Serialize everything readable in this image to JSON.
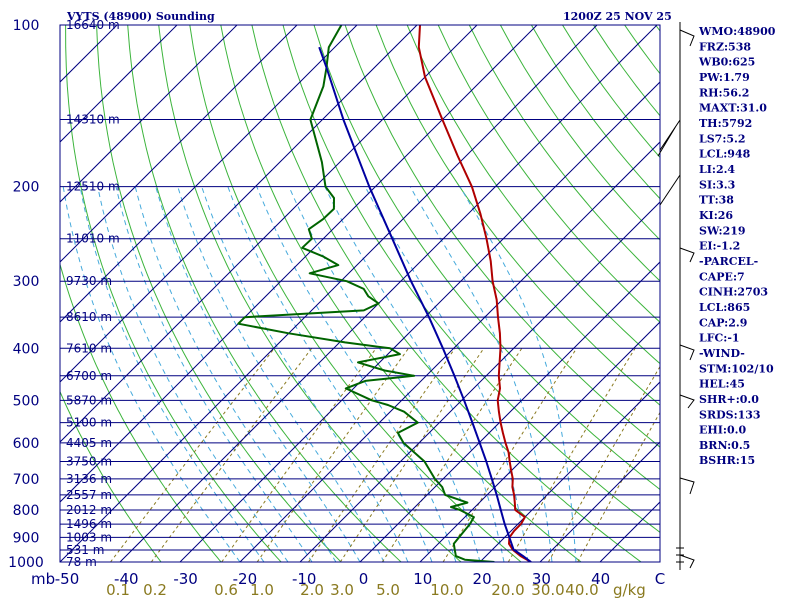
{
  "header": {
    "station_title": "VYTS (48900) Sounding",
    "time_label": "1200Z 25 NOV 25"
  },
  "chart_data": {
    "type": "skew-t log-p",
    "title": "VYTS (48900) Sounding",
    "valid_time": "1200Z 25 NOV 25",
    "pressure_label": "mb",
    "pressure_levels": [
      100,
      200,
      300,
      400,
      500,
      600,
      700,
      800,
      900,
      1000
    ],
    "pressure_range": [
      100,
      1000
    ],
    "temperature_ticks": [
      "-50",
      "-40",
      "-30",
      "-20",
      "-10",
      "0",
      "10",
      "20",
      "30",
      "40",
      "C"
    ],
    "temperature_range": [
      -50,
      50
    ],
    "mixing_ratio_label": "g/kg",
    "mixing_ratio_ticks": [
      "0.1",
      "0.2",
      "0.6",
      "1.0",
      "2.0",
      "3.0",
      "5.0",
      "10.0",
      "20.0",
      "30.0",
      "40.0"
    ],
    "height_labels": [
      {
        "p": 100,
        "label": "16640 m"
      },
      {
        "p": 150,
        "label": "14310 m"
      },
      {
        "p": 200,
        "label": "12510 m"
      },
      {
        "p": 250,
        "label": "11010 m"
      },
      {
        "p": 300,
        "label": "9730 m"
      },
      {
        "p": 350,
        "label": "8610 m"
      },
      {
        "p": 400,
        "label": "7610 m"
      },
      {
        "p": 450,
        "label": "6700 m"
      },
      {
        "p": 500,
        "label": "5870 m"
      },
      {
        "p": 550,
        "label": "5100 m"
      },
      {
        "p": 600,
        "label": "4405 m"
      },
      {
        "p": 650,
        "label": "3750 m"
      },
      {
        "p": 700,
        "label": "3136 m"
      },
      {
        "p": 750,
        "label": "2557 m"
      },
      {
        "p": 800,
        "label": "2012 m"
      },
      {
        "p": 850,
        "label": "1496 m"
      },
      {
        "p": 900,
        "label": "1003 m"
      },
      {
        "p": 950,
        "label": "531 m"
      },
      {
        "p": 1000,
        "label": "78 m"
      }
    ],
    "series": [
      {
        "name": "Temperature",
        "color": "#b00000",
        "points": [
          [
            1000,
            28.5
          ],
          [
            975,
            25.8
          ],
          [
            950,
            23.5
          ],
          [
            925,
            21.8
          ],
          [
            900,
            20.8
          ],
          [
            875,
            20.5
          ],
          [
            850,
            20.5
          ],
          [
            825,
            20.0
          ],
          [
            800,
            17.2
          ],
          [
            775,
            15.9
          ],
          [
            750,
            14.5
          ],
          [
            725,
            12.9
          ],
          [
            700,
            11.6
          ],
          [
            675,
            9.9
          ],
          [
            650,
            8.2
          ],
          [
            625,
            6.5
          ],
          [
            600,
            4.4
          ],
          [
            575,
            2.3
          ],
          [
            550,
            0.2
          ],
          [
            525,
            -1.9
          ],
          [
            500,
            -4.0
          ],
          [
            475,
            -5.6
          ],
          [
            450,
            -7.9
          ],
          [
            425,
            -10.0
          ],
          [
            400,
            -12.2
          ],
          [
            375,
            -14.8
          ],
          [
            350,
            -17.8
          ],
          [
            325,
            -20.9
          ],
          [
            300,
            -24.7
          ],
          [
            275,
            -28.4
          ],
          [
            250,
            -32.8
          ],
          [
            225,
            -37.9
          ],
          [
            200,
            -43.9
          ],
          [
            175,
            -51.5
          ],
          [
            150,
            -60.0
          ],
          [
            125,
            -70.0
          ],
          [
            110,
            -76.0
          ],
          [
            100,
            -79.5
          ]
        ]
      },
      {
        "name": "Dewpoint",
        "color": "#006400",
        "points": [
          [
            1000,
            22.4
          ],
          [
            990,
            17.1
          ],
          [
            975,
            15.0
          ],
          [
            950,
            13.8
          ],
          [
            925,
            12.6
          ],
          [
            900,
            12.4
          ],
          [
            875,
            12.2
          ],
          [
            850,
            12.0
          ],
          [
            825,
            11.5
          ],
          [
            800,
            8.0
          ],
          [
            790,
            6.0
          ],
          [
            775,
            8.0
          ],
          [
            750,
            3.0
          ],
          [
            725,
            1.2
          ],
          [
            700,
            -1.4
          ],
          [
            650,
            -6.0
          ],
          [
            600,
            -12.6
          ],
          [
            575,
            -15.2
          ],
          [
            550,
            -13.6
          ],
          [
            525,
            -17.7
          ],
          [
            510,
            -21.5
          ],
          [
            500,
            -25.0
          ],
          [
            475,
            -31.3
          ],
          [
            460,
            -29.3
          ],
          [
            450,
            -22.0
          ],
          [
            440,
            -27.8
          ],
          [
            425,
            -33.6
          ],
          [
            410,
            -28.0
          ],
          [
            400,
            -30.6
          ],
          [
            390,
            -39.1
          ],
          [
            375,
            -50.0
          ],
          [
            360,
            -60.0
          ],
          [
            350,
            -60.0
          ],
          [
            340,
            -41.3
          ],
          [
            330,
            -40.0
          ],
          [
            320,
            -42.9
          ],
          [
            310,
            -44.9
          ],
          [
            300,
            -49.0
          ],
          [
            290,
            -56.5
          ],
          [
            280,
            -53.1
          ],
          [
            270,
            -57.0
          ],
          [
            260,
            -62.0
          ],
          [
            250,
            -61.9
          ],
          [
            240,
            -64.0
          ],
          [
            230,
            -63.3
          ],
          [
            220,
            -63.2
          ],
          [
            210,
            -65.0
          ],
          [
            200,
            -68.3
          ],
          [
            180,
            -73.0
          ],
          [
            150,
            -82.0
          ],
          [
            130,
            -85.4
          ],
          [
            120,
            -88.0
          ],
          [
            110,
            -91.0
          ],
          [
            100,
            -92.6
          ]
        ]
      },
      {
        "name": "Parcel",
        "color": "#0000a0",
        "points": [
          [
            1000,
            28.5
          ],
          [
            975,
            26.2
          ],
          [
            948,
            23.5
          ],
          [
            900,
            20.8
          ],
          [
            850,
            17.8
          ],
          [
            800,
            14.8
          ],
          [
            750,
            11.6
          ],
          [
            700,
            8.1
          ],
          [
            650,
            4.3
          ],
          [
            600,
            0.1
          ],
          [
            550,
            -4.5
          ],
          [
            500,
            -9.6
          ],
          [
            450,
            -15.3
          ],
          [
            400,
            -21.8
          ],
          [
            350,
            -29.3
          ],
          [
            300,
            -38.3
          ],
          [
            250,
            -48.5
          ],
          [
            200,
            -61.0
          ],
          [
            150,
            -76.5
          ],
          [
            120,
            -88.0
          ],
          [
            110,
            -92.6
          ]
        ]
      }
    ],
    "legend": []
  },
  "indices": [
    "WMO:48900",
    "FRZ:538",
    "WB0:625",
    "PW:1.79",
    "RH:56.2",
    "MAXT:31.0",
    "TH:5792",
    "LS7:5.2",
    "LCL:948",
    "LI:2.4",
    "SI:3.3",
    "TT:38",
    "KI:26",
    "SW:219",
    "EI:-1.2",
    "-PARCEL-",
    "CAPE:7",
    "CINH:2703",
    "LCL:865",
    "CAP:2.9",
    "LFC:-1",
    "-WIND-",
    "STM:102/10",
    "HEL:45",
    "SHR+:0.0",
    "SRDS:133",
    "EHI:0.0",
    "BRN:0.5",
    "BSHR:15"
  ],
  "colors": {
    "frame": "#000080",
    "temperature": "#b00000",
    "dewpoint": "#006400",
    "parcel": "#0000a0",
    "dry_adiabat": "#3cb43c",
    "moist_adiabat": "#46aadc",
    "mixing_ratio": "#8a7a20"
  }
}
